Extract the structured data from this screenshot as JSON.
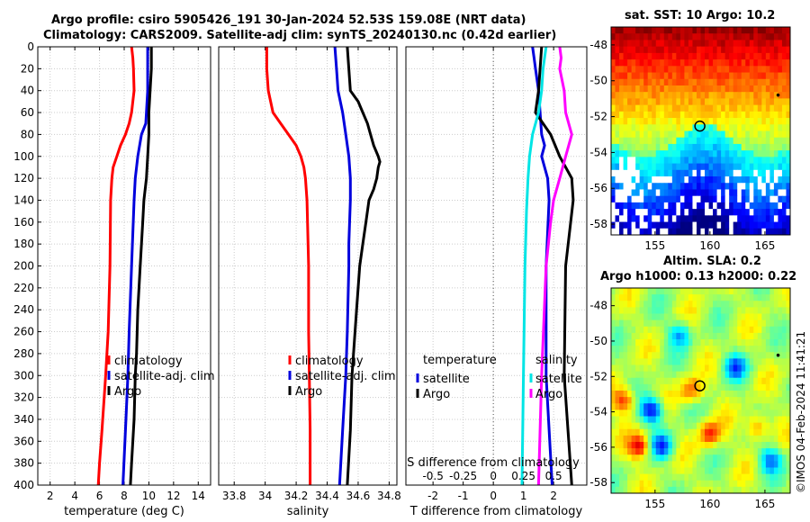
{
  "header": {
    "line1": "Argo profile: csiro 5905426_191 30-Jan-2024 52.53S 159.08E (NRT data)",
    "line2": "Climatology: CARS2009. Satellite-adj clim: synTS_20240130.nc (0.42d earlier)"
  },
  "sst_map": {
    "title": "sat. SST: 10 Argo: 10.2"
  },
  "sla_map": {
    "title1": "Altim. SLA: 0.2",
    "title2": "Argo h1000: 0.13 h2000: 0.22"
  },
  "credit": "©IMOS 04-Feb-2024 11:41:21",
  "colors": {
    "climatology": "#ff0000",
    "satellite": "#0000dd",
    "argo": "#000000",
    "temp_diff_sat": "#0000dd",
    "sal_diff_sat": "#00e5e5",
    "sal_diff_argo": "#ff00ff"
  },
  "chart_data": [
    {
      "type": "line",
      "name": "temperature-profile",
      "xlabel": "temperature (deg C)",
      "ylabel": "",
      "xlim": [
        1,
        15
      ],
      "ylim": [
        400,
        0
      ],
      "xticks": [
        2,
        4,
        6,
        8,
        10,
        12,
        14
      ],
      "yticks": [
        0,
        20,
        40,
        60,
        80,
        100,
        120,
        140,
        160,
        180,
        200,
        220,
        240,
        260,
        280,
        300,
        320,
        340,
        360,
        380,
        400
      ],
      "legend": [
        "climatology",
        "satellite-adj. clim",
        "Argo"
      ],
      "series": [
        {
          "name": "climatology",
          "depth": [
            0,
            10,
            20,
            40,
            60,
            70,
            80,
            90,
            100,
            110,
            120,
            140,
            200,
            260,
            300,
            350,
            380,
            400
          ],
          "values": [
            8.6,
            8.7,
            8.75,
            8.8,
            8.6,
            8.4,
            8.1,
            7.7,
            7.4,
            7.1,
            7.0,
            6.9,
            6.85,
            6.7,
            6.5,
            6.2,
            6.0,
            5.9
          ]
        },
        {
          "name": "satellite-adj. clim",
          "depth": [
            0,
            20,
            40,
            60,
            70,
            80,
            100,
            120,
            140,
            200,
            260,
            300,
            350,
            400
          ],
          "values": [
            9.9,
            9.9,
            9.9,
            9.8,
            9.75,
            9.4,
            9.1,
            8.9,
            8.8,
            8.6,
            8.4,
            8.3,
            8.1,
            7.9
          ]
        },
        {
          "name": "Argo",
          "depth": [
            0,
            20,
            40,
            60,
            80,
            100,
            120,
            140,
            160,
            200,
            240,
            280,
            300,
            340,
            380,
            400
          ],
          "values": [
            10.2,
            10.2,
            10.1,
            10.0,
            10.0,
            9.9,
            9.8,
            9.6,
            9.5,
            9.3,
            9.1,
            9.0,
            8.9,
            8.8,
            8.6,
            8.5
          ]
        }
      ]
    },
    {
      "type": "line",
      "name": "salinity-profile",
      "xlabel": "salinity",
      "xlim": [
        33.7,
        34.85
      ],
      "ylim": [
        400,
        0
      ],
      "xticks": [
        33.8,
        34,
        34.2,
        34.4,
        34.6,
        34.8
      ],
      "legend": [
        "climatology",
        "satellite-adj. clim",
        "Argo"
      ],
      "series": [
        {
          "name": "climatology",
          "depth": [
            0,
            20,
            40,
            60,
            70,
            80,
            90,
            100,
            110,
            120,
            140,
            200,
            260,
            300,
            350,
            400
          ],
          "values": [
            34.01,
            34.01,
            34.02,
            34.05,
            34.1,
            34.15,
            34.2,
            34.23,
            34.25,
            34.26,
            34.27,
            34.28,
            34.28,
            34.285,
            34.29,
            34.29
          ]
        },
        {
          "name": "satellite-adj. clim",
          "depth": [
            0,
            20,
            40,
            60,
            80,
            100,
            120,
            140,
            180,
            200,
            260,
            300,
            350,
            400
          ],
          "values": [
            34.45,
            34.46,
            34.47,
            34.5,
            34.52,
            34.54,
            34.55,
            34.55,
            34.54,
            34.54,
            34.53,
            34.52,
            34.5,
            34.48
          ]
        },
        {
          "name": "Argo",
          "depth": [
            0,
            20,
            40,
            50,
            60,
            70,
            80,
            90,
            100,
            105,
            110,
            120,
            130,
            140,
            160,
            180,
            200,
            240,
            280,
            300,
            350,
            400
          ],
          "values": [
            34.53,
            34.54,
            34.55,
            34.6,
            34.63,
            34.66,
            34.68,
            34.7,
            34.73,
            34.74,
            34.73,
            34.72,
            34.7,
            34.67,
            34.65,
            34.63,
            34.61,
            34.59,
            34.57,
            34.56,
            34.55,
            34.53
          ]
        }
      ]
    },
    {
      "type": "line",
      "name": "difference-profile",
      "xlabel": "T difference from climatology",
      "xlabel_top": "S difference from climatology",
      "xlim": [
        -2.9,
        3.1
      ],
      "ylim": [
        400,
        0
      ],
      "xticks": [
        -2,
        -1,
        0,
        1,
        2
      ],
      "top_ticks": [
        "-0.5",
        "-0.25",
        "0",
        "0.25",
        "0.5"
      ],
      "top_ticks_at": [
        -2,
        -1,
        0,
        1,
        2
      ],
      "legend_left_title": "temperature",
      "legend_right_title": "salinity",
      "legend": [
        "satellite",
        "Argo"
      ],
      "series": [
        {
          "name": "T satellite",
          "depth": [
            0,
            10,
            20,
            40,
            60,
            80,
            90,
            100,
            120,
            140,
            200,
            300,
            400
          ],
          "values": [
            1.3,
            1.35,
            1.4,
            1.5,
            1.55,
            1.6,
            1.7,
            1.6,
            1.8,
            1.85,
            1.75,
            1.75,
            1.95
          ]
        },
        {
          "name": "T Argo",
          "depth": [
            0,
            20,
            40,
            60,
            80,
            100,
            120,
            140,
            200,
            300,
            400
          ],
          "values": [
            1.6,
            1.55,
            1.5,
            1.4,
            1.9,
            2.2,
            2.6,
            2.65,
            2.4,
            2.35,
            2.6
          ]
        },
        {
          "name": "S satellite",
          "depth": [
            0,
            10,
            20,
            40,
            60,
            80,
            100,
            120,
            150,
            200,
            300,
            400
          ],
          "values": [
            1.75,
            1.7,
            1.65,
            1.6,
            1.5,
            1.3,
            1.2,
            1.15,
            1.1,
            1.05,
            1.0,
            0.95
          ]
        },
        {
          "name": "S Argo",
          "depth": [
            0,
            10,
            20,
            40,
            60,
            80,
            100,
            120,
            140,
            160,
            200,
            300,
            400
          ],
          "values": [
            2.2,
            2.25,
            2.2,
            2.35,
            2.4,
            2.6,
            2.4,
            2.2,
            2.0,
            1.9,
            1.75,
            1.6,
            1.5
          ]
        }
      ]
    },
    {
      "type": "heatmap",
      "name": "sst-map",
      "xlim": [
        151,
        167.3
      ],
      "ylim": [
        -58.6,
        -47
      ],
      "xticks": [
        155,
        160,
        165
      ],
      "yticks": [
        -48,
        -50,
        -52,
        -54,
        -56,
        -58
      ],
      "argo_position": [
        159.08,
        -52.53
      ]
    },
    {
      "type": "heatmap",
      "name": "sla-map",
      "xlim": [
        151,
        167.3
      ],
      "ylim": [
        -58.6,
        -47
      ],
      "xticks": [
        155,
        160,
        165
      ],
      "yticks": [
        -48,
        -50,
        -52,
        -54,
        -56,
        -58
      ],
      "argo_position": [
        159.08,
        -52.53
      ]
    }
  ]
}
